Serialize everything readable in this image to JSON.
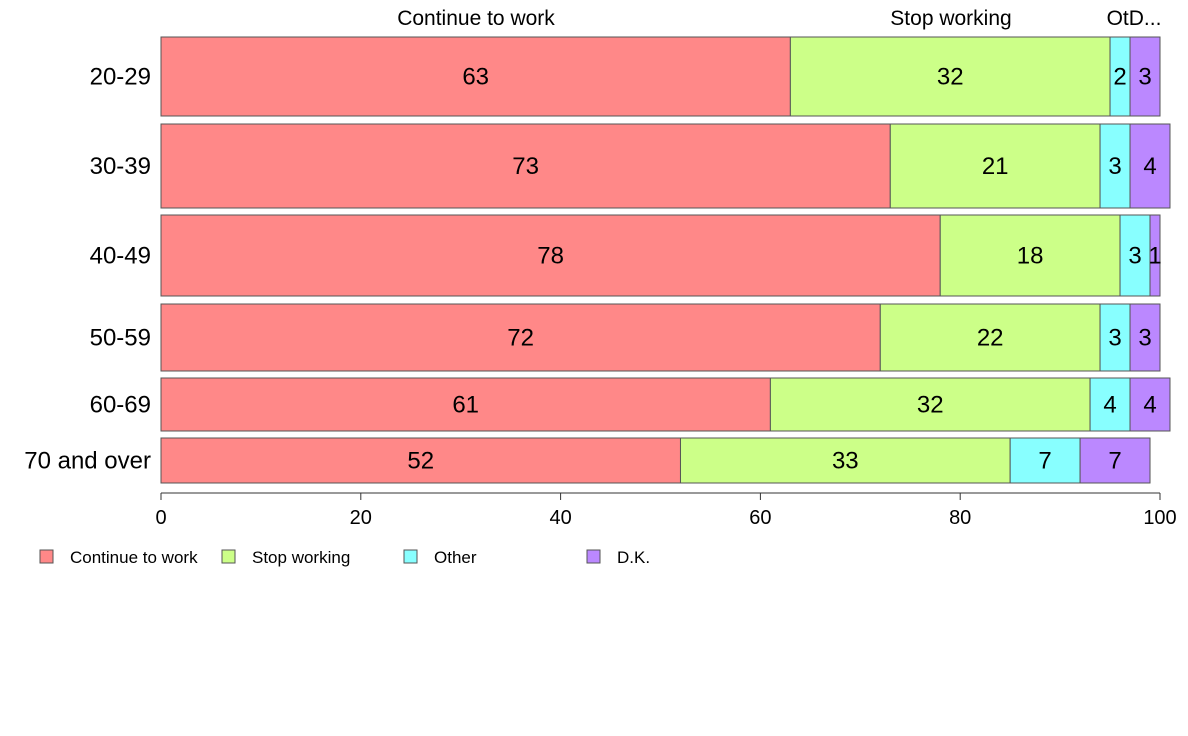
{
  "chart_data": {
    "type": "bar",
    "orientation": "horizontal",
    "stacked": true,
    "categories": [
      "20-29",
      "30-39",
      "40-49",
      "50-59",
      "60-69",
      "70 and over"
    ],
    "series": [
      {
        "name": "Continue to work",
        "color": "#ff8888",
        "values": [
          63,
          73,
          78,
          72,
          61,
          52
        ]
      },
      {
        "name": "Stop working",
        "color": "#ccff88",
        "values": [
          32,
          21,
          18,
          22,
          32,
          33
        ]
      },
      {
        "name": "Other",
        "color": "#88ffff",
        "values": [
          2,
          3,
          3,
          3,
          4,
          7
        ]
      },
      {
        "name": "D.K.",
        "color": "#bb88ff",
        "values": [
          3,
          4,
          1,
          3,
          4,
          7
        ]
      }
    ],
    "top_labels": [
      "Continue to work",
      "Stop working",
      "OtD..."
    ],
    "xlim": [
      0,
      100
    ],
    "x_ticks": [
      "0",
      "20",
      "40",
      "60",
      "80",
      "100"
    ],
    "grid": false,
    "legend_position": "bottom-left"
  }
}
